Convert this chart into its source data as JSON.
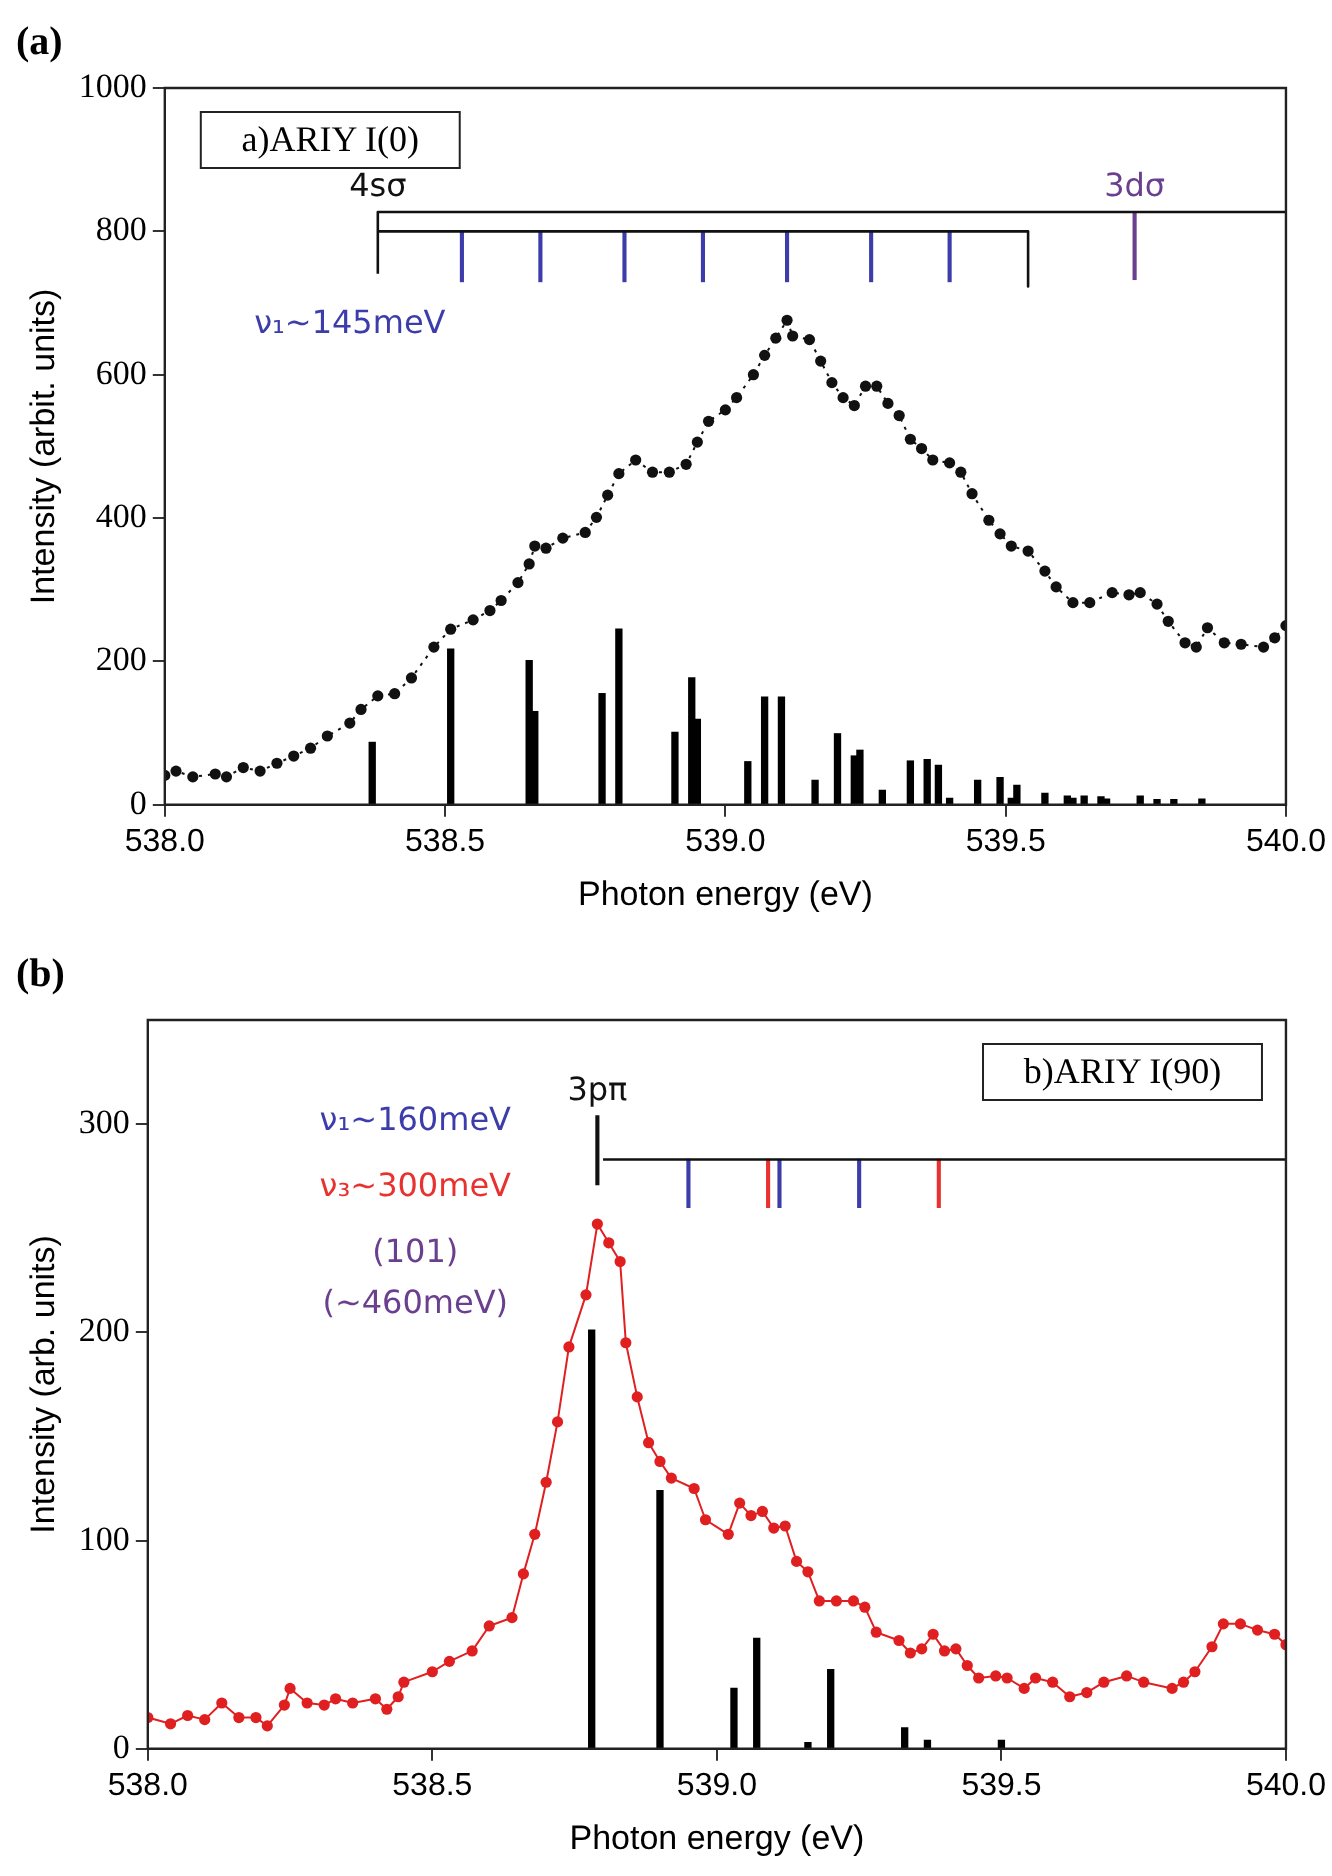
{
  "chart_data": [
    {
      "type": "line",
      "title": "(a)",
      "xlabel": "Photon energy (eV)",
      "ylabel": "Intensity (arbit. units)",
      "xlim": [
        538,
        540
      ],
      "ylim": [
        0,
        1000
      ],
      "xticks": [
        {
          "value": 538,
          "label": "538.0"
        },
        {
          "value": 538.5,
          "label": "538.5"
        },
        {
          "value": 539,
          "label": "539.0"
        },
        {
          "value": 539.5,
          "label": "539.5"
        },
        {
          "value": 540,
          "label": "540.0"
        }
      ],
      "yticks": [
        0,
        200,
        400,
        600,
        800,
        1000
      ],
      "grid": false,
      "legend": false,
      "annotations": [
        "a)ARIY I(0)",
        {
          "text": "4sσ",
          "x": 538.38,
          "y": 827
        },
        {
          "text": "3dσ",
          "x": 539.73,
          "y": 827
        },
        "ν₁~145meV"
      ],
      "series": [
        {
          "marker": "circle",
          "line_style": "dotted",
          "color": "#111111",
          "x": [
            538.0,
            538.02,
            538.05,
            538.09,
            538.11,
            538.14,
            538.17,
            538.2,
            538.23,
            538.26,
            538.29,
            538.33,
            538.35,
            538.38,
            538.41,
            538.44,
            538.48,
            538.51,
            538.55,
            538.58,
            538.6,
            538.63,
            538.65,
            538.66,
            538.68,
            538.71,
            538.75,
            538.77,
            538.79,
            538.81,
            538.84,
            538.87,
            538.9,
            538.93,
            538.95,
            538.97,
            539.0,
            539.02,
            539.05,
            539.07,
            539.09,
            539.11,
            539.12,
            539.15,
            539.17,
            539.19,
            539.21,
            539.23,
            539.25,
            539.27,
            539.29,
            539.31,
            539.33,
            539.35,
            539.37,
            539.4,
            539.42,
            539.44,
            539.47,
            539.49,
            539.51,
            539.54,
            539.57,
            539.59,
            539.62,
            539.65,
            539.69,
            539.72,
            539.74,
            539.77,
            539.79,
            539.82,
            539.84,
            539.86,
            539.89,
            539.92,
            539.96,
            539.98,
            540.0
          ],
          "values": [
            41,
            47,
            39,
            43,
            39,
            52,
            47,
            58,
            68,
            79,
            96,
            114,
            133,
            152,
            155,
            177,
            220,
            245,
            258,
            271,
            285,
            310,
            336,
            361,
            358,
            372,
            380,
            401,
            432,
            462,
            481,
            464,
            464,
            475,
            506,
            535,
            551,
            568,
            600,
            627,
            651,
            676,
            654,
            649,
            619,
            589,
            568,
            557,
            584,
            584,
            560,
            543,
            510,
            497,
            481,
            477,
            464,
            434,
            397,
            378,
            361,
            354,
            326,
            304,
            282,
            282,
            296,
            293,
            296,
            280,
            256,
            226,
            220,
            247,
            226,
            224,
            220,
            233,
            250
          ]
        },
        {
          "type": "bar",
          "color": "#000000",
          "x": [
            538.37,
            538.51,
            538.65,
            538.66,
            538.78,
            538.81,
            538.91,
            538.94,
            538.95,
            539.04,
            539.07,
            539.1,
            539.16,
            539.2,
            539.23,
            539.24,
            539.28,
            539.33,
            539.36,
            539.38,
            539.4,
            539.45,
            539.49,
            539.51,
            539.52,
            539.57,
            539.61,
            539.62,
            539.64,
            539.67,
            539.68,
            539.74,
            539.77,
            539.8,
            539.85
          ],
          "values": [
            87,
            217,
            201,
            130,
            155,
            245,
            101,
            177,
            119,
            60,
            150,
            150,
            34,
            99,
            68,
            76,
            20,
            61,
            63,
            55,
            9,
            34,
            38,
            9,
            27,
            16,
            12,
            9,
            12,
            11,
            8,
            12,
            7,
            7,
            8
          ]
        },
        {
          "marker": "none",
          "line_style": "solid",
          "color": "#111111",
          "x": [
            538.38,
            538.38,
            540.0
          ],
          "values": [
            741,
            827,
            827
          ]
        },
        {
          "marker": "none",
          "line_style": "solid",
          "color": "#111111",
          "x": [
            538.38,
            539.54,
            539.54
          ],
          "values": [
            800,
            800,
            723
          ]
        },
        {
          "type": "bar",
          "color": "#3c3caa",
          "x": [
            538.53,
            538.67,
            538.82,
            538.96,
            539.11,
            539.26,
            539.4
          ],
          "base": [
            730,
            730,
            730,
            730,
            730,
            730,
            730
          ],
          "values": [
            70,
            70,
            70,
            70,
            70,
            70,
            70
          ]
        },
        {
          "type": "bar",
          "color": "#6b3f8f",
          "x": [
            539.73
          ],
          "base": [
            733
          ],
          "values": [
            94
          ]
        }
      ]
    },
    {
      "type": "line",
      "title": "(b)",
      "xlabel": "Photon energy (eV)",
      "ylabel": "Intensity (arb. units)",
      "xlim": [
        538,
        540
      ],
      "ylim": [
        0,
        350
      ],
      "xticks": [
        {
          "value": 538,
          "label": "538.0"
        },
        {
          "value": 538.5,
          "label": "538.5"
        },
        {
          "value": 539,
          "label": "539.0"
        },
        {
          "value": 539.5,
          "label": "539.5"
        },
        {
          "value": 540,
          "label": "540.0"
        }
      ],
      "yticks": [
        0,
        100,
        200,
        300
      ],
      "grid": false,
      "legend": false,
      "annotations": [
        "b)ARIY I(90)",
        {
          "text": "3pπ",
          "x": 538.79,
          "y": 304
        },
        "ν₁~160meV",
        "ν₃~300meV",
        "(101)",
        "(~460meV)"
      ],
      "series": [
        {
          "marker": "circle",
          "line_style": "solid",
          "color": "#e02020",
          "x": [
            538.0,
            538.04,
            538.07,
            538.1,
            538.13,
            538.16,
            538.19,
            538.21,
            538.24,
            538.25,
            538.28,
            538.31,
            538.33,
            538.36,
            538.4,
            538.42,
            538.44,
            538.45,
            538.5,
            538.53,
            538.57,
            538.6,
            538.64,
            538.66,
            538.68,
            538.7,
            538.72,
            538.74,
            538.77,
            538.79,
            538.81,
            538.83,
            538.84,
            538.86,
            538.88,
            538.9,
            538.92,
            538.96,
            538.98,
            539.02,
            539.04,
            539.06,
            539.08,
            539.1,
            539.12,
            539.14,
            539.16,
            539.18,
            539.21,
            539.24,
            539.26,
            539.28,
            539.32,
            539.34,
            539.36,
            539.38,
            539.4,
            539.42,
            539.44,
            539.46,
            539.49,
            539.51,
            539.54,
            539.56,
            539.59,
            539.62,
            539.65,
            539.68,
            539.72,
            539.75,
            539.8,
            539.82,
            539.84,
            539.87,
            539.89,
            539.92,
            539.95,
            539.98,
            540.0
          ],
          "values": [
            15,
            12,
            16,
            14,
            22,
            15,
            15,
            11,
            21,
            29,
            22,
            21,
            24,
            22,
            24,
            19,
            25,
            32,
            37,
            42,
            47,
            59,
            63,
            84,
            103,
            128,
            157,
            193,
            218,
            252,
            243,
            234,
            195,
            169,
            147,
            138,
            130,
            125,
            110,
            103,
            118,
            112,
            114,
            106,
            107,
            90,
            85,
            71,
            71,
            71,
            68,
            56,
            52,
            46,
            48,
            55,
            47,
            48,
            40,
            34,
            35,
            34,
            29,
            34,
            32,
            25,
            27,
            32,
            35,
            32,
            29,
            32,
            37,
            49,
            60,
            60,
            57,
            55,
            50
          ]
        },
        {
          "type": "bar",
          "color": "#000000",
          "x": [
            538.78,
            538.9,
            539.03,
            539.07,
            539.16,
            539.2,
            539.33,
            539.37,
            539.5
          ],
          "values": [
            201,
            124,
            29,
            53,
            3,
            38,
            10,
            4,
            4
          ]
        },
        {
          "type": "bar",
          "color": "#111111",
          "x": [
            538.79
          ],
          "base": [
            271
          ],
          "values": [
            33
          ]
        },
        {
          "marker": "none",
          "line_style": "solid",
          "color": "#111111",
          "x": [
            538.8,
            540.0
          ],
          "values": [
            283,
            283
          ]
        },
        {
          "type": "bar",
          "color": "#3c3caa",
          "x": [
            538.95,
            539.11,
            539.25
          ],
          "base": [
            260,
            260,
            260
          ],
          "values": [
            23,
            23,
            23
          ]
        },
        {
          "type": "bar",
          "color": "#e8322f",
          "x": [
            539.09,
            539.39
          ],
          "base": [
            260,
            260
          ],
          "values": [
            23,
            23
          ]
        }
      ]
    }
  ]
}
